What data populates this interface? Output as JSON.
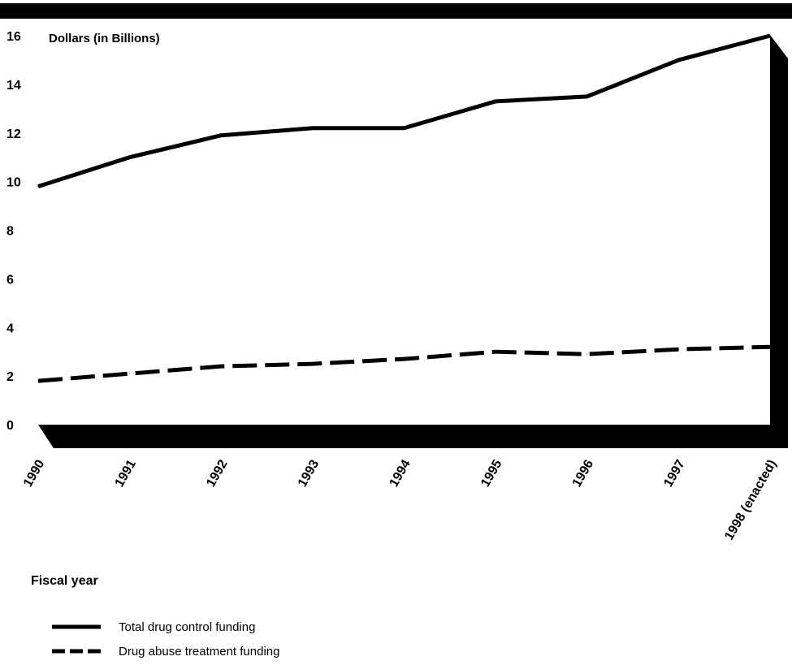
{
  "chart_data": {
    "type": "line",
    "ylabel": "Dollars (in Billions)",
    "xlabel": "Fiscal year",
    "ylim": [
      0,
      16
    ],
    "yticks": [
      0,
      2,
      4,
      6,
      8,
      10,
      12,
      14,
      16
    ],
    "categories": [
      "1990",
      "1991",
      "1992",
      "1993",
      "1994",
      "1995",
      "1996",
      "1997",
      "1998 (enacted)"
    ],
    "series": [
      {
        "name": "Total drug control funding",
        "style": "solid",
        "values": [
          9.8,
          11.0,
          11.9,
          12.2,
          12.2,
          13.3,
          13.5,
          15.0,
          16.0
        ]
      },
      {
        "name": "Drug abuse treatment funding",
        "style": "dashed",
        "values": [
          1.8,
          2.1,
          2.4,
          2.5,
          2.7,
          3.0,
          2.9,
          3.1,
          3.2
        ]
      }
    ],
    "legend_position": "bottom-left",
    "grid": false
  },
  "colors": {
    "ink": "#000000",
    "background": "#ffffff"
  }
}
